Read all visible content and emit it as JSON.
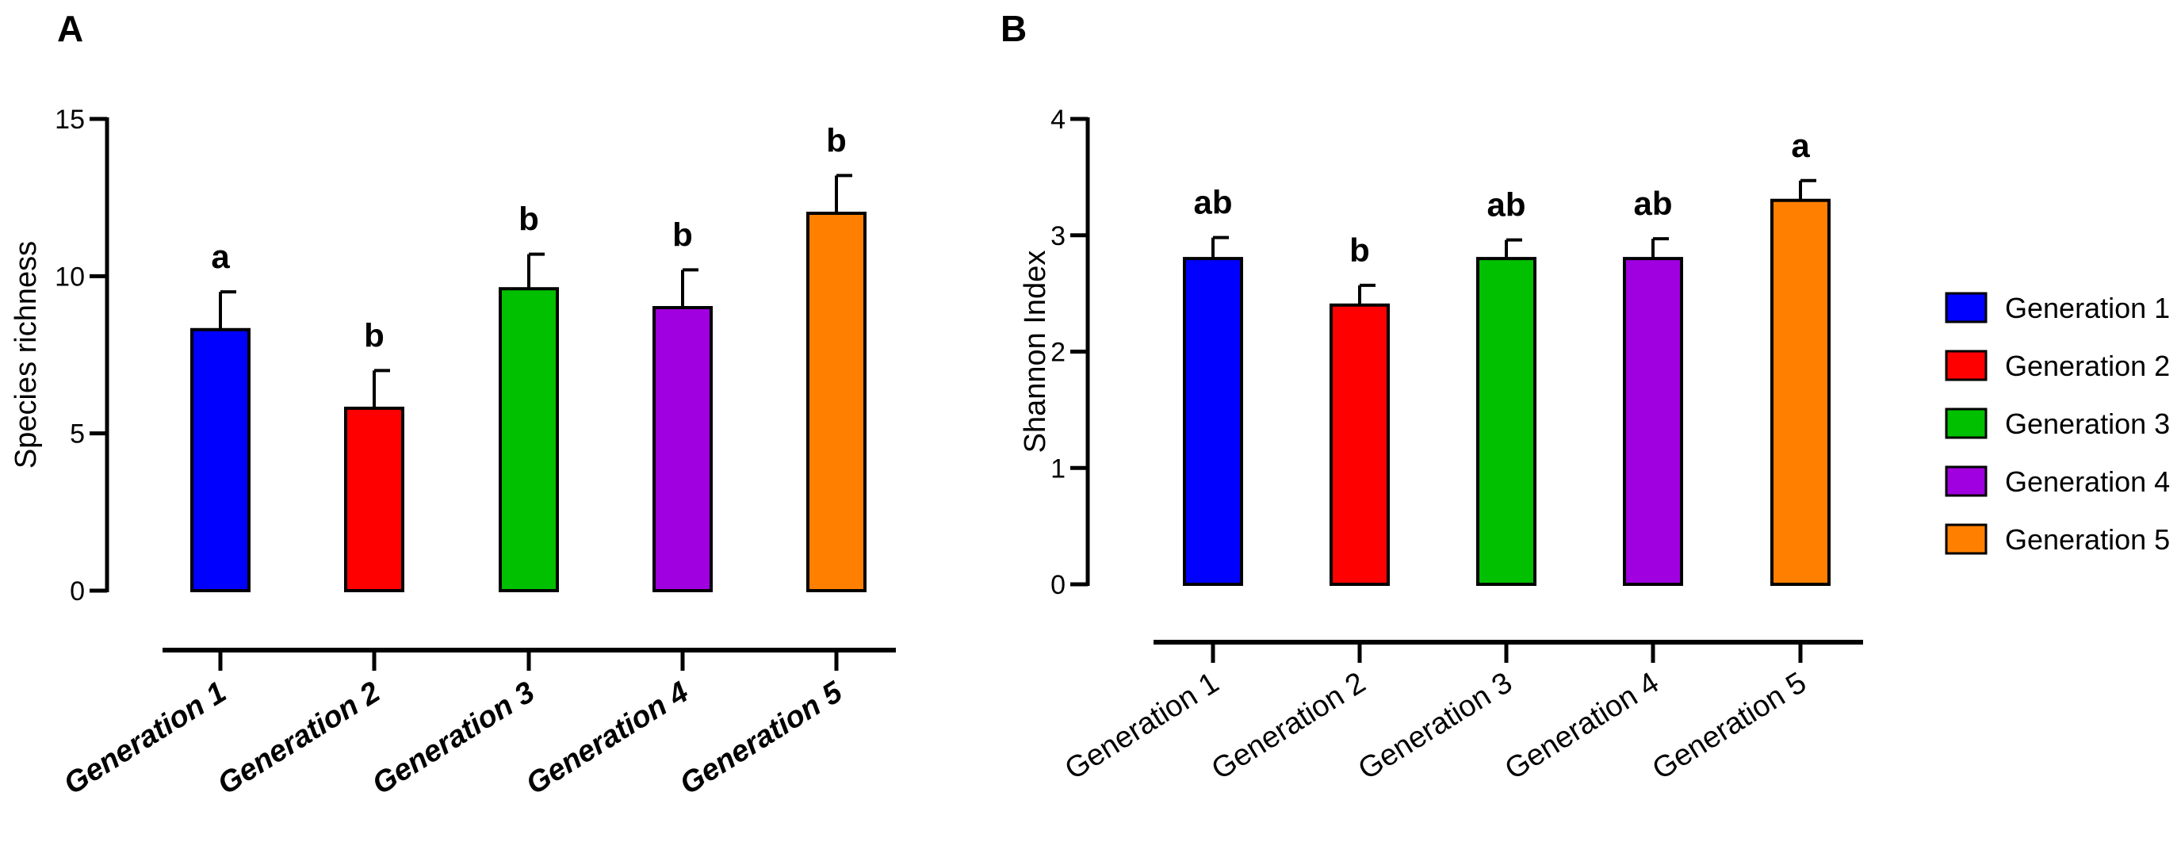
{
  "colors": {
    "Generation 1": "#0000FF",
    "Generation 2": "#FF0000",
    "Generation 3": "#00C000",
    "Generation 4": "#A000E0",
    "Generation 5": "#FF8000"
  },
  "legend": {
    "entries": [
      "Generation 1",
      "Generation 2",
      "Generation 3",
      "Generation 4",
      "Generation 5"
    ]
  },
  "chart_data": [
    {
      "panel": "A",
      "type": "bar",
      "ylabel": "Species richness",
      "xlabel": "",
      "ylim": [
        0,
        15
      ],
      "yticks": [
        "0",
        "5",
        "10",
        "15"
      ],
      "categories": [
        "Generation 1",
        "Generation 2",
        "Generation 3",
        "Generation 4",
        "Generation 5"
      ],
      "values": [
        8.3,
        5.8,
        9.6,
        9.0,
        12.0
      ],
      "errors": [
        1.2,
        1.2,
        1.1,
        1.2,
        1.2
      ],
      "significance": [
        "a",
        "b",
        "b",
        "b",
        "b"
      ]
    },
    {
      "panel": "B",
      "type": "bar",
      "ylabel": "Shannon Index",
      "xlabel": "",
      "ylim": [
        0,
        4
      ],
      "yticks": [
        "0",
        "1",
        "2",
        "3",
        "4"
      ],
      "categories": [
        "Generation 1",
        "Generation 2",
        "Generation 3",
        "Generation 4",
        "Generation 5"
      ],
      "values": [
        2.8,
        2.4,
        2.8,
        2.8,
        3.3
      ],
      "errors": [
        0.18,
        0.17,
        0.16,
        0.17,
        0.17
      ],
      "significance": [
        "ab",
        "b",
        "ab",
        "ab",
        "a"
      ]
    }
  ]
}
